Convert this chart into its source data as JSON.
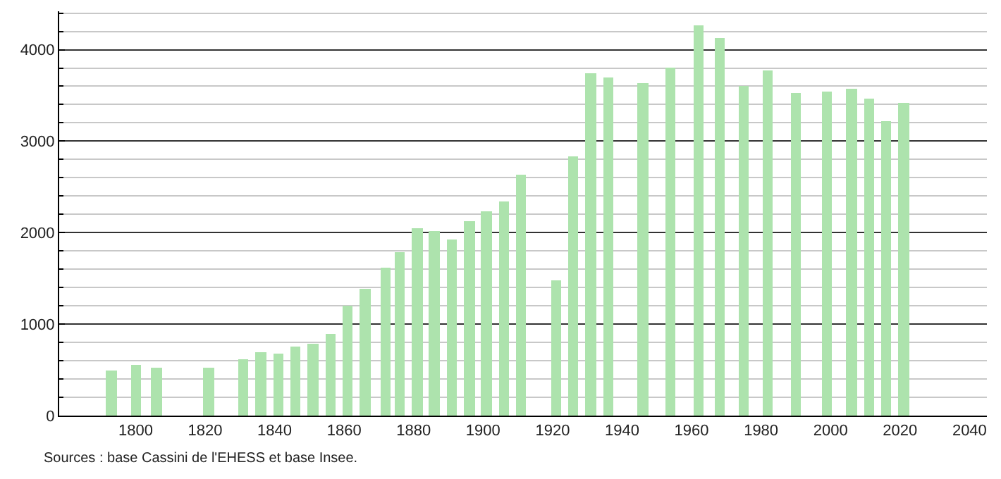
{
  "chart_data": {
    "type": "bar",
    "x": [
      1793,
      1800,
      1806,
      1821,
      1831,
      1836,
      1841,
      1846,
      1851,
      1856,
      1861,
      1866,
      1872,
      1876,
      1881,
      1886,
      1891,
      1896,
      1901,
      1906,
      1911,
      1921,
      1926,
      1931,
      1936,
      1946,
      1954,
      1962,
      1968,
      1975,
      1982,
      1990,
      1999,
      2006,
      2011,
      2016,
      2021
    ],
    "values": [
      490,
      550,
      530,
      530,
      620,
      700,
      680,
      750,
      790,
      900,
      1200,
      1390,
      1610,
      1790,
      2050,
      2020,
      1930,
      2120,
      2240,
      2340,
      2630,
      1480,
      2840,
      3750,
      3700,
      3640,
      3800,
      4270,
      4120,
      3600,
      3770,
      3530,
      3540,
      3580,
      3460,
      3220,
      3420
    ],
    "color": "#ade3ad",
    "xlim": [
      1778,
      2045
    ],
    "xticks": [
      1800,
      1820,
      1840,
      1860,
      1880,
      1900,
      1920,
      1940,
      1960,
      1980,
      2000,
      2020,
      2040
    ],
    "ylim": [
      0,
      4420
    ],
    "yticks": [
      0,
      {
        "value": 200,
        "label": null
      },
      {
        "value": 400,
        "label": null
      },
      {
        "value": 600,
        "label": null
      },
      {
        "value": 800,
        "label": null
      },
      1000,
      {
        "value": 1200,
        "label": null
      },
      {
        "value": 1400,
        "label": null
      },
      {
        "value": 1600,
        "label": null
      },
      {
        "value": 1800,
        "label": null
      },
      2000,
      {
        "value": 2200,
        "label": null
      },
      {
        "value": 2400,
        "label": null
      },
      {
        "value": 2600,
        "label": null
      },
      {
        "value": 2800,
        "label": null
      },
      3000,
      {
        "value": 3200,
        "label": null
      },
      {
        "value": 3400,
        "label": null
      },
      {
        "value": 3600,
        "label": null
      },
      {
        "value": 3800,
        "label": null
      },
      4000,
      {
        "value": 4200,
        "label": null
      },
      {
        "value": 4400,
        "label": null
      }
    ],
    "grid": "y",
    "annotations": [
      "Sources : base Cassini de l'EHESS et base Insee."
    ]
  }
}
